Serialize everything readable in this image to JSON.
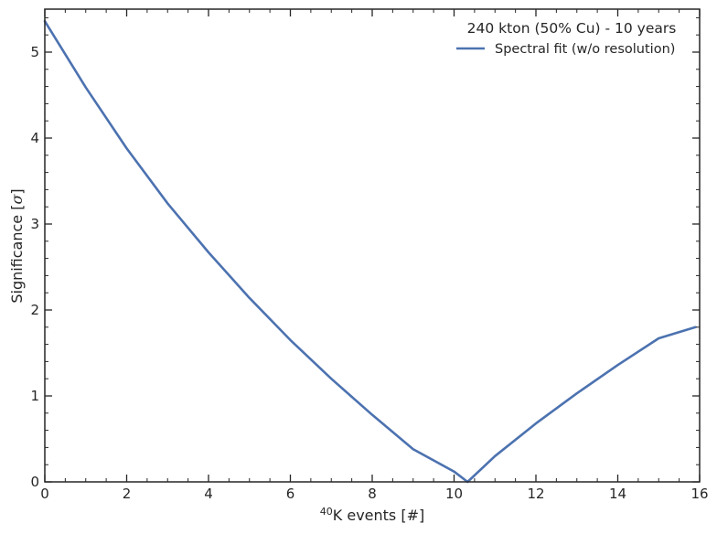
{
  "chart_data": {
    "type": "line",
    "xlabel_sup": "40",
    "xlabel_main": "K events [#]",
    "ylabel_main": "Significance [",
    "ylabel_sym": "σ",
    "ylabel_end": "]",
    "xlim": [
      0,
      16
    ],
    "ylim": [
      0,
      5.5
    ],
    "xticks": [
      0,
      2,
      4,
      6,
      8,
      10,
      12,
      14,
      16
    ],
    "yticks": [
      0,
      1,
      2,
      3,
      4,
      5
    ],
    "x_minor_step": 0.5,
    "y_minor_step": 0.2,
    "grid": false,
    "legend_position": "top-right",
    "legend_title": "240 kton (50% Cu) - 10 years",
    "series": [
      {
        "name": "Spectral fit (w/o resolution)",
        "color": "#4c72b0",
        "x": [
          0,
          1,
          2,
          3,
          4,
          5,
          6,
          7,
          8,
          9,
          10,
          10.33,
          11,
          12,
          13,
          14,
          15,
          15.9
        ],
        "y": [
          5.36,
          4.59,
          3.88,
          3.24,
          2.67,
          2.14,
          1.65,
          1.2,
          0.78,
          0.38,
          0.12,
          0.0,
          0.3,
          0.68,
          1.03,
          1.36,
          1.67,
          1.8
        ]
      }
    ]
  }
}
